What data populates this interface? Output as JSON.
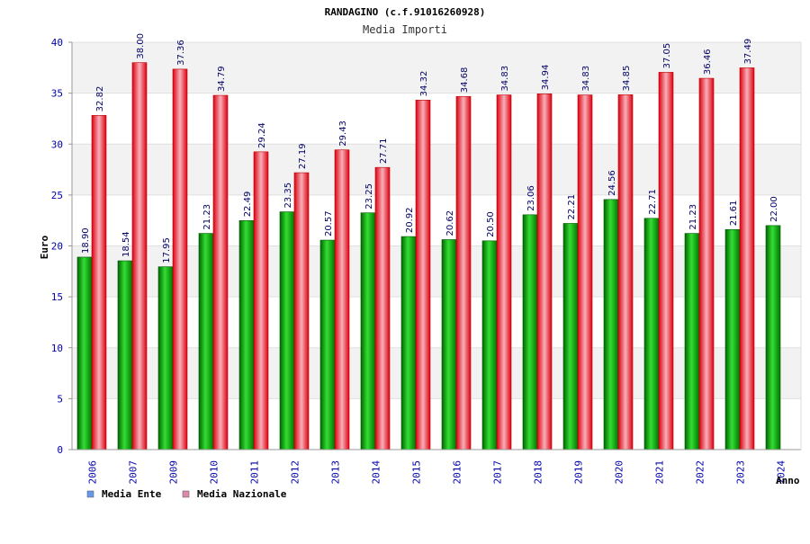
{
  "chart_data": {
    "type": "bar",
    "title": "RANDAGINO (c.f.91016260928)",
    "subtitle": "Media Importi",
    "xlabel": "Anno",
    "ylabel": "Euro",
    "ylim": [
      0,
      40
    ],
    "yticks": [
      0,
      5,
      10,
      15,
      20,
      25,
      30,
      35,
      40
    ],
    "grid": true,
    "legend_position": "bottom-left",
    "categories": [
      "2006",
      "2007",
      "2009",
      "2010",
      "2011",
      "2012",
      "2013",
      "2014",
      "2015",
      "2016",
      "2017",
      "2018",
      "2019",
      "2020",
      "2021",
      "2022",
      "2023",
      "2024"
    ],
    "series": [
      {
        "name": "Media Ente",
        "color": "#00aa00",
        "legend_color": "#6699ee",
        "values": [
          18.9,
          18.54,
          17.95,
          21.23,
          22.49,
          23.35,
          20.57,
          23.25,
          20.92,
          20.62,
          20.5,
          23.06,
          22.21,
          24.56,
          22.71,
          21.23,
          21.61,
          22.0
        ],
        "labels": [
          "18.90",
          "18.54",
          "17.95",
          "21.23",
          "22.49",
          "23.35",
          "20.57",
          "23.25",
          "20.92",
          "20.62",
          "20.50",
          "23.06",
          "22.21",
          "24.56",
          "22.71",
          "21.23",
          "21.61",
          "22.00"
        ]
      },
      {
        "name": "Media Nazionale",
        "color": "#ee1122",
        "legend_color": "#dd88aa",
        "values": [
          32.82,
          38.0,
          37.36,
          34.79,
          29.24,
          27.19,
          29.43,
          27.71,
          34.32,
          34.68,
          34.83,
          34.94,
          34.83,
          34.85,
          37.05,
          36.46,
          37.49,
          null
        ],
        "labels": [
          "32.82",
          "38.00",
          "37.36",
          "34.79",
          "29.24",
          "27.19",
          "29.43",
          "27.71",
          "34.32",
          "34.68",
          "34.83",
          "34.94",
          "34.83",
          "34.85",
          "37.05",
          "36.46",
          "37.49",
          ""
        ]
      }
    ]
  }
}
